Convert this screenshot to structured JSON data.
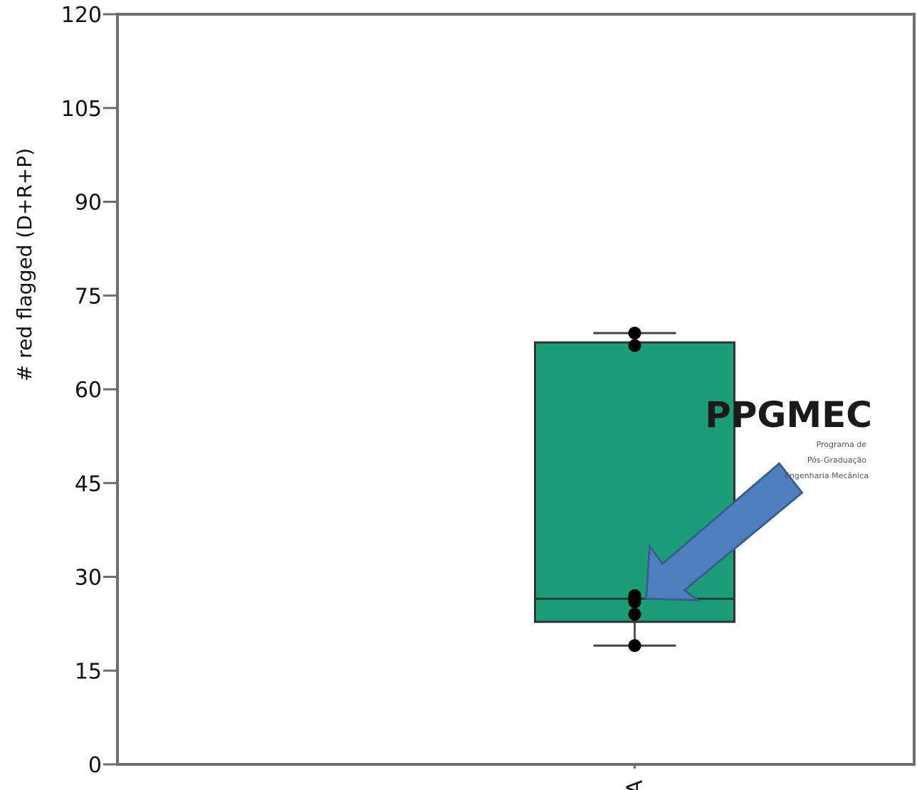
{
  "chart_data": {
    "type": "box",
    "title": "",
    "xlabel": "",
    "ylabel": "# red flagged (D+R+P)",
    "ylim": [
      0,
      120
    ],
    "yticks": [
      0,
      15,
      30,
      45,
      60,
      75,
      90,
      105,
      120
    ],
    "categories": [
      "A"
    ],
    "series": [
      {
        "category": "A",
        "whisker_low": 19,
        "q1": 22.8,
        "median": 26.5,
        "q3": 67.5,
        "whisker_high": 69,
        "points": [
          19,
          24,
          26,
          26.5,
          27,
          67,
          69
        ],
        "color": "#1b9e77"
      }
    ],
    "grid": false,
    "legend": "none",
    "annotation": {
      "type": "arrow",
      "color": "#4f7fbe",
      "points_to_value": 26.5
    }
  },
  "logo": {
    "name": "PPGMEC",
    "lines": [
      "Programa de",
      "Pós-Graduação",
      "Engenharia Mecânica"
    ]
  }
}
